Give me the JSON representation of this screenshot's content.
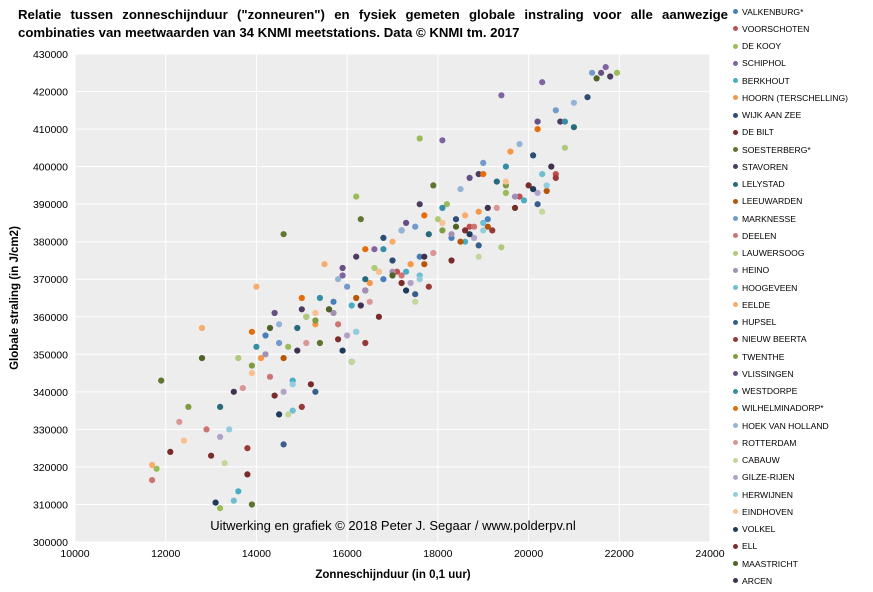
{
  "title": "Relatie tussen zonneschijnduur (\"zonneuren\") en fysiek gemeten globale instraling voor alle aanwezige combinaties van meetwaarden van 34 KNMI meetstations. Data © KNMI tm. 2017",
  "credit": "Uitwerking en grafiek © 2018 Peter J. Segaar / www.polderpv.nl",
  "chart_data": {
    "type": "scatter",
    "xlabel": "Zonneschijnduur (in 0,1 uur)",
    "ylabel": "Globale straling (in J/cm2)",
    "xlim": [
      10000,
      24000
    ],
    "ylim": [
      300000,
      430000
    ],
    "x_ticks": [
      10000,
      12000,
      14000,
      16000,
      18000,
      20000,
      22000,
      24000
    ],
    "y_ticks": [
      300000,
      310000,
      320000,
      330000,
      340000,
      350000,
      360000,
      370000,
      380000,
      390000,
      400000,
      410000,
      420000,
      430000
    ],
    "grid": true,
    "legend_position": "right",
    "series": [
      {
        "name": "VALKENBURG*",
        "color": "#4a7ebb",
        "points": [
          [
            16800,
            370000
          ],
          [
            17600,
            376000
          ],
          [
            18300,
            381000
          ],
          [
            15700,
            364000
          ],
          [
            19100,
            386000
          ],
          [
            14200,
            355000
          ]
        ]
      },
      {
        "name": "VOORSCHOTEN",
        "color": "#c0504d",
        "points": [
          [
            17100,
            372000
          ],
          [
            18700,
            384000
          ],
          [
            16400,
            367000
          ],
          [
            19800,
            392000
          ],
          [
            15100,
            360000
          ],
          [
            20600,
            398000
          ]
        ]
      },
      {
        "name": "DE KOOY",
        "color": "#9bbb59",
        "points": [
          [
            11800,
            319500
          ],
          [
            13200,
            309000
          ],
          [
            16200,
            392000
          ],
          [
            17600,
            407500
          ],
          [
            21950,
            425000
          ],
          [
            18200,
            390000
          ],
          [
            14700,
            352000
          ],
          [
            19500,
            393000
          ]
        ]
      },
      {
        "name": "SCHIPHOL",
        "color": "#8064a2",
        "points": [
          [
            21700,
            426500
          ],
          [
            20300,
            422500
          ],
          [
            19400,
            419000
          ],
          [
            18100,
            407000
          ],
          [
            17200,
            383000
          ],
          [
            15900,
            371000
          ],
          [
            16600,
            378000
          ]
        ]
      },
      {
        "name": "BERKHOUT",
        "color": "#4bacc6",
        "points": [
          [
            13600,
            313500
          ],
          [
            17300,
            372000
          ],
          [
            18600,
            380000
          ],
          [
            16100,
            363000
          ],
          [
            19900,
            391000
          ],
          [
            14800,
            343000
          ]
        ]
      },
      {
        "name": "HOORN (TERSCHELLING)",
        "color": "#f79646",
        "points": [
          [
            17400,
            374000
          ],
          [
            18900,
            388000
          ],
          [
            19600,
            404000
          ],
          [
            16500,
            369000
          ],
          [
            15300,
            358000
          ],
          [
            14100,
            349000
          ]
        ]
      },
      {
        "name": "WIJK AAN ZEE",
        "color": "#2c4d75",
        "points": [
          [
            21300,
            418500
          ],
          [
            20100,
            403000
          ],
          [
            18400,
            386000
          ],
          [
            17000,
            375000
          ],
          [
            15600,
            362000
          ],
          [
            16800,
            381000
          ]
        ]
      },
      {
        "name": "DE BILT",
        "color": "#772c2a",
        "points": [
          [
            12100,
            324000
          ],
          [
            13800,
            318000
          ],
          [
            15200,
            342000
          ],
          [
            16700,
            360000
          ],
          [
            18300,
            375000
          ],
          [
            19700,
            389000
          ]
        ]
      },
      {
        "name": "SOESTERBERG*",
        "color": "#5f7530",
        "points": [
          [
            11900,
            343000
          ],
          [
            13900,
            310000
          ],
          [
            14600,
            382000
          ],
          [
            16300,
            386000
          ],
          [
            17900,
            395000
          ],
          [
            15400,
            353000
          ]
        ]
      },
      {
        "name": "STAVOREN",
        "color": "#4d3b62",
        "points": [
          [
            21800,
            424000
          ],
          [
            20700,
            412000
          ],
          [
            18900,
            398000
          ],
          [
            17600,
            390000
          ],
          [
            16200,
            376000
          ],
          [
            15000,
            362000
          ]
        ]
      },
      {
        "name": "LELYSTAD",
        "color": "#276a7c",
        "points": [
          [
            21000,
            410500
          ],
          [
            19300,
            396000
          ],
          [
            17800,
            382000
          ],
          [
            16400,
            370000
          ],
          [
            14900,
            357000
          ],
          [
            13200,
            336000
          ]
        ]
      },
      {
        "name": "LEEUWARDEN",
        "color": "#b65708",
        "points": [
          [
            20400,
            393500
          ],
          [
            19100,
            384000
          ],
          [
            17700,
            374000
          ],
          [
            16200,
            365000
          ],
          [
            14600,
            349000
          ],
          [
            18500,
            380000
          ]
        ]
      },
      {
        "name": "MARKNESSE",
        "color": "#729aca",
        "points": [
          [
            21400,
            425000
          ],
          [
            20600,
            415000
          ],
          [
            19000,
            401000
          ],
          [
            17500,
            384000
          ],
          [
            16000,
            368000
          ],
          [
            14500,
            353000
          ]
        ]
      },
      {
        "name": "DEELEN",
        "color": "#cd7371",
        "points": [
          [
            11700,
            316500
          ],
          [
            12900,
            330000
          ],
          [
            14300,
            344000
          ],
          [
            15800,
            358000
          ],
          [
            17200,
            371000
          ],
          [
            18800,
            384000
          ]
        ]
      },
      {
        "name": "LAUWERSOOG",
        "color": "#afc97a",
        "points": [
          [
            20800,
            405000
          ],
          [
            19400,
            378500
          ],
          [
            18000,
            386000
          ],
          [
            16600,
            373000
          ],
          [
            15100,
            360000
          ],
          [
            13600,
            349000
          ]
        ]
      },
      {
        "name": "HEINO",
        "color": "#a18fb4",
        "points": [
          [
            17000,
            372000
          ],
          [
            18300,
            382000
          ],
          [
            19700,
            392000
          ],
          [
            15700,
            361000
          ],
          [
            14200,
            350000
          ],
          [
            16400,
            367000
          ]
        ]
      },
      {
        "name": "HOOGEVEEN",
        "color": "#6fbdd1",
        "points": [
          [
            13500,
            311000
          ],
          [
            14800,
            335000
          ],
          [
            16200,
            356000
          ],
          [
            17600,
            371000
          ],
          [
            19000,
            385000
          ],
          [
            20300,
            398000
          ]
        ]
      },
      {
        "name": "EELDE",
        "color": "#f9ab6b",
        "points": [
          [
            11700,
            320500
          ],
          [
            12800,
            357000
          ],
          [
            14000,
            368000
          ],
          [
            15500,
            374000
          ],
          [
            17000,
            380000
          ],
          [
            18600,
            387000
          ]
        ]
      },
      {
        "name": "HUPSEL",
        "color": "#3a5e8c",
        "points": [
          [
            14600,
            326000
          ],
          [
            16100,
            348000
          ],
          [
            17500,
            366000
          ],
          [
            18900,
            379000
          ],
          [
            20200,
            390000
          ],
          [
            15300,
            340000
          ]
        ]
      },
      {
        "name": "NIEUW BEERTA",
        "color": "#963a38",
        "points": [
          [
            13800,
            325000
          ],
          [
            15000,
            336000
          ],
          [
            16400,
            353000
          ],
          [
            17800,
            368000
          ],
          [
            19200,
            383000
          ],
          [
            20600,
            397000
          ]
        ]
      },
      {
        "name": "TWENTHE",
        "color": "#7f9c41",
        "points": [
          [
            12500,
            336000
          ],
          [
            13900,
            347000
          ],
          [
            15300,
            359000
          ],
          [
            16700,
            372000
          ],
          [
            18100,
            383000
          ],
          [
            19500,
            395000
          ]
        ]
      },
      {
        "name": "VLISSINGEN",
        "color": "#664f82",
        "points": [
          [
            21600,
            425000
          ],
          [
            20200,
            412000
          ],
          [
            18700,
            397000
          ],
          [
            17300,
            385000
          ],
          [
            15900,
            373000
          ],
          [
            14400,
            361000
          ]
        ]
      },
      {
        "name": "WESTDORPE",
        "color": "#358ea6",
        "points": [
          [
            20800,
            412000
          ],
          [
            19500,
            400000
          ],
          [
            18100,
            389000
          ],
          [
            16800,
            378000
          ],
          [
            15400,
            365000
          ],
          [
            14000,
            352000
          ]
        ]
      },
      {
        "name": "WILHELMINADORP*",
        "color": "#e46c0a",
        "points": [
          [
            20200,
            410000
          ],
          [
            19000,
            398000
          ],
          [
            17700,
            387000
          ],
          [
            16400,
            378000
          ],
          [
            15000,
            365000
          ],
          [
            13900,
            356000
          ]
        ]
      },
      {
        "name": "HOEK VAN HOLLAND",
        "color": "#95b3d7",
        "points": [
          [
            21000,
            417000
          ],
          [
            19800,
            406000
          ],
          [
            18500,
            394000
          ],
          [
            17200,
            383000
          ],
          [
            15800,
            370000
          ],
          [
            14500,
            358000
          ]
        ]
      },
      {
        "name": "ROTTERDAM",
        "color": "#d99694",
        "points": [
          [
            12300,
            332000
          ],
          [
            13700,
            341000
          ],
          [
            15100,
            353000
          ],
          [
            16500,
            364000
          ],
          [
            17900,
            377000
          ],
          [
            19300,
            389000
          ]
        ]
      },
      {
        "name": "CABAUW",
        "color": "#c3d69b",
        "points": [
          [
            13300,
            321000
          ],
          [
            14700,
            334000
          ],
          [
            16100,
            348000
          ],
          [
            17500,
            364000
          ],
          [
            18900,
            376000
          ],
          [
            20300,
            388000
          ]
        ]
      },
      {
        "name": "GILZE-RIJEN",
        "color": "#b3a2c7",
        "points": [
          [
            13200,
            328000
          ],
          [
            14600,
            340000
          ],
          [
            16000,
            355000
          ],
          [
            17400,
            369000
          ],
          [
            18800,
            381000
          ],
          [
            20200,
            393000
          ]
        ]
      },
      {
        "name": "HERWIJNEN",
        "color": "#93cddd",
        "points": [
          [
            13400,
            330000
          ],
          [
            14800,
            342000
          ],
          [
            16200,
            356000
          ],
          [
            17600,
            370000
          ],
          [
            19000,
            383000
          ],
          [
            20400,
            395000
          ]
        ]
      },
      {
        "name": "EINDHOVEN",
        "color": "#fac090",
        "points": [
          [
            12400,
            327000
          ],
          [
            13900,
            345000
          ],
          [
            15300,
            361000
          ],
          [
            16700,
            372000
          ],
          [
            18100,
            385000
          ],
          [
            19500,
            396000
          ]
        ]
      },
      {
        "name": "VOLKEL",
        "color": "#1f3b5a",
        "points": [
          [
            13100,
            310500
          ],
          [
            14500,
            334000
          ],
          [
            15900,
            351000
          ],
          [
            17300,
            367000
          ],
          [
            18700,
            382000
          ],
          [
            20100,
            394000
          ]
        ]
      },
      {
        "name": "ELL",
        "color": "#7b2c2c",
        "points": [
          [
            13000,
            323000
          ],
          [
            14400,
            339000
          ],
          [
            15800,
            354000
          ],
          [
            17200,
            369000
          ],
          [
            18600,
            383000
          ],
          [
            20000,
            395000
          ]
        ]
      },
      {
        "name": "MAASTRICHT",
        "color": "#4f6228",
        "points": [
          [
            12800,
            349000
          ],
          [
            14300,
            357000
          ],
          [
            15600,
            362000
          ],
          [
            17000,
            371000
          ],
          [
            18400,
            384000
          ],
          [
            21500,
            423500
          ]
        ]
      },
      {
        "name": "ARCEN",
        "color": "#403151",
        "points": [
          [
            13500,
            340000
          ],
          [
            14900,
            351000
          ],
          [
            16300,
            363000
          ],
          [
            17700,
            376000
          ],
          [
            19100,
            389000
          ],
          [
            20500,
            400000
          ]
        ]
      }
    ]
  }
}
